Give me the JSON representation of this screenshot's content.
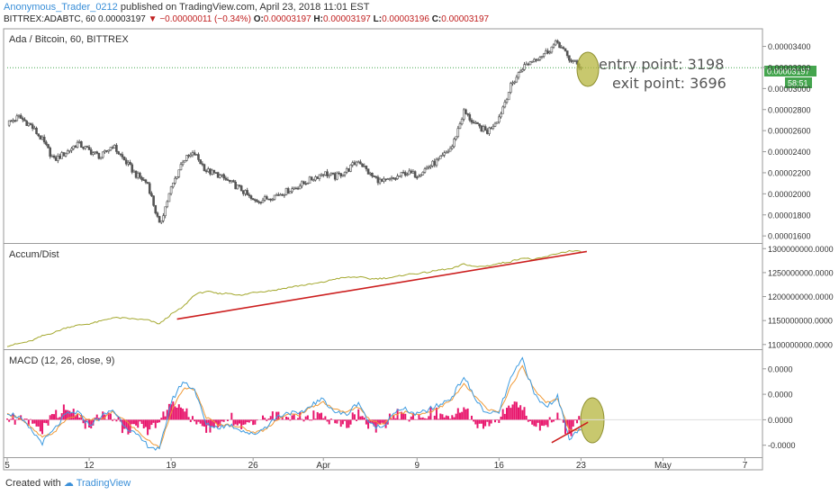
{
  "header": {
    "user": "Anonymous_Trader_0212",
    "published": "published on TradingView.com, April 23, 2018 11:01 EST",
    "symbol": "BITTREX:ADABTC, 60",
    "last": "0.00003197",
    "change": "−0.00000011 (−0.34%)",
    "o_label": "O:",
    "o_value": "0.00003197",
    "h_label": "H:",
    "h_value": "0.00003197",
    "l_label": "L:",
    "l_value": "0.00003196",
    "c_label": "C:",
    "c_value": "0.00003197"
  },
  "annotations": {
    "entry": "entry point: 3198",
    "exit": "exit point: 3696"
  },
  "price_badge": {
    "value": "0.00003197",
    "countdown": "58:51"
  },
  "footer": {
    "created_with": "Created with",
    "brand": "TradingView"
  },
  "colors": {
    "price": "#555555",
    "accum": "#a4a82e",
    "trend": "#cc1f1f",
    "macd": "#3d9be0",
    "signal": "#f09a37",
    "hist": "#e8176d",
    "highlight": "#b5b63d",
    "badge": "#44a54e"
  },
  "chart_data": [
    {
      "type": "line",
      "title": "Ada / Bitcoin, 60, BITTREX",
      "ylim": [
        1.55e-05,
        3.55e-05
      ],
      "ytick_labels": [
        "0.00003400",
        "0.00003200",
        "0.00003000",
        "0.00002800",
        "0.00002600",
        "0.00002400",
        "0.00002200",
        "0.00002000",
        "0.00001800",
        "0.00001600"
      ],
      "yticks": [
        3.4e-05,
        3.2e-05,
        3e-05,
        2.8e-05,
        2.6e-05,
        2.4e-05,
        2.2e-05,
        2e-05,
        1.8e-05,
        1.6e-05
      ],
      "x_labels": [
        "5",
        "12",
        "19",
        "26",
        "Apr",
        "9",
        "16",
        "23",
        "May",
        "7"
      ],
      "x_label_days": [
        0,
        7,
        14,
        21,
        27,
        35,
        42,
        49,
        56,
        63
      ],
      "xlim": [
        0,
        64.5
      ],
      "series": [
        {
          "x": [
            0,
            1,
            2,
            3,
            4,
            5,
            6,
            7,
            8,
            9,
            10,
            11,
            12,
            13,
            14,
            15,
            16,
            17,
            18,
            19,
            20,
            21,
            22,
            23,
            24,
            25,
            26,
            27,
            28,
            29,
            30,
            31,
            32,
            33,
            34,
            35,
            36,
            37,
            38,
            39,
            40,
            41,
            42,
            43,
            44,
            45,
            46,
            47,
            48,
            49
          ],
          "values": [
            2.67e-05,
            2.73e-05,
            2.65e-05,
            2.51e-05,
            2.32e-05,
            2.39e-05,
            2.48e-05,
            2.41e-05,
            2.35e-05,
            2.46e-05,
            2.32e-05,
            2.18e-05,
            2.1e-05,
            1.7e-05,
            2.05e-05,
            2.32e-05,
            2.38e-05,
            2.22e-05,
            2.18e-05,
            2.11e-05,
            2.04e-05,
            1.93e-05,
            1.95e-05,
            1.99e-05,
            2.03e-05,
            2.08e-05,
            2.14e-05,
            2.2e-05,
            2.16e-05,
            2.22e-05,
            2.32e-05,
            2.18e-05,
            2.11e-05,
            2.14e-05,
            2.2e-05,
            2.18e-05,
            2.26e-05,
            2.33e-05,
            2.45e-05,
            2.78e-05,
            2.65e-05,
            2.59e-05,
            2.73e-05,
            3.02e-05,
            3.2e-05,
            3.28e-05,
            3.34e-05,
            3.44e-05,
            3.28e-05,
            3.2e-05
          ]
        }
      ]
    },
    {
      "type": "line",
      "title": "Accum/Dist",
      "ylim": [
        1094000000,
        1308000000
      ],
      "ytick_labels": [
        "1300000000.0000",
        "1250000000.0000",
        "1200000000.0000",
        "1150000000.0000",
        "1100000000.0000"
      ],
      "yticks": [
        1300000000,
        1250000000,
        1200000000,
        1150000000,
        1100000000
      ],
      "series": [
        {
          "x": [
            0,
            1,
            2,
            3,
            4,
            5,
            6,
            7,
            8,
            9,
            10,
            11,
            12,
            13,
            14,
            15,
            16,
            17,
            18,
            19,
            20,
            21,
            22,
            23,
            24,
            25,
            26,
            27,
            28,
            29,
            30,
            31,
            32,
            33,
            34,
            35,
            36,
            37,
            38,
            39,
            40,
            41,
            42,
            43,
            44,
            45,
            46,
            47,
            48,
            49
          ],
          "values": [
            1097000000,
            1102000000,
            1107000000,
            1118000000,
            1125000000,
            1135000000,
            1140000000,
            1143000000,
            1149000000,
            1156000000,
            1155000000,
            1153000000,
            1151000000,
            1143000000,
            1163000000,
            1178000000,
            1204000000,
            1211000000,
            1206000000,
            1207000000,
            1202000000,
            1209000000,
            1211000000,
            1214000000,
            1219000000,
            1223000000,
            1226000000,
            1230000000,
            1237000000,
            1240000000,
            1241000000,
            1237000000,
            1238000000,
            1240000000,
            1246000000,
            1248000000,
            1251000000,
            1256000000,
            1258000000,
            1268000000,
            1262000000,
            1264000000,
            1269000000,
            1273000000,
            1281000000,
            1277000000,
            1283000000,
            1290000000,
            1295000000,
            1294000000
          ]
        }
      ],
      "trendline": {
        "x": [
          14.5,
          49.5
        ],
        "values": [
          1153000000,
          1294000000
        ]
      }
    },
    {
      "type": "line",
      "title": "MACD (12, 26, close, 9)",
      "ylim": [
        -1.4e-06,
        2.7e-06
      ],
      "ytick_labels": [
        "0.0000",
        "0.0000",
        "0.0000",
        "-0.0000"
      ],
      "yticks": [
        2e-06,
        1e-06,
        0.0,
        -1e-06
      ],
      "series": [
        {
          "name": "MACD",
          "x": [
            0,
            1,
            2,
            3,
            4,
            5,
            6,
            7,
            8,
            9,
            10,
            11,
            12,
            13,
            14,
            15,
            16,
            17,
            18,
            19,
            20,
            21,
            22,
            23,
            24,
            25,
            26,
            27,
            28,
            29,
            30,
            31,
            32,
            33,
            34,
            35,
            36,
            37,
            38,
            39,
            40,
            41,
            42,
            43,
            44,
            45,
            46,
            47,
            48,
            49
          ],
          "values": [
            3e-07,
            1e-07,
            -4e-07,
            -9e-07,
            -4e-07,
            2e-07,
            3e-07,
            -2e-07,
            1e-07,
            4e-07,
            -2e-07,
            -6e-07,
            -1e-06,
            -1.2e-06,
            7e-07,
            1.5e-06,
            1.2e-06,
            -2e-07,
            -3e-07,
            -2e-07,
            -4e-07,
            -6e-07,
            -3e-07,
            1e-07,
            3e-07,
            2e-07,
            6e-07,
            8e-07,
            3e-07,
            2e-07,
            7e-07,
            -2e-07,
            -3e-07,
            3e-07,
            4e-07,
            2e-07,
            4e-07,
            6e-07,
            9e-07,
            1.7e-06,
            8e-07,
            2e-07,
            3e-07,
            1.6e-06,
            2.4e-06,
            1e-06,
            5e-07,
            9e-07,
            -7e-07,
            -4e-07
          ]
        },
        {
          "name": "Signal",
          "x": [
            0,
            1,
            2,
            3,
            4,
            5,
            6,
            7,
            8,
            9,
            10,
            11,
            12,
            13,
            14,
            15,
            16,
            17,
            18,
            19,
            20,
            21,
            22,
            23,
            24,
            25,
            26,
            27,
            28,
            29,
            30,
            31,
            32,
            33,
            34,
            35,
            36,
            37,
            38,
            39,
            40,
            41,
            42,
            43,
            44,
            45,
            46,
            47,
            48,
            49
          ],
          "values": [
            2e-07,
            1e-07,
            -3e-07,
            -7e-07,
            -5e-07,
            0.0,
            2e-07,
            0.0,
            0.0,
            3e-07,
            0.0,
            -4e-07,
            -8e-07,
            -1.1e-06,
            3e-07,
            1.2e-06,
            1.2e-06,
            1e-07,
            -2e-07,
            -2e-07,
            -3e-07,
            -5e-07,
            -4e-07,
            0.0,
            2e-07,
            2e-07,
            5e-07,
            7e-07,
            4e-07,
            3e-07,
            5e-07,
            0.0,
            -2e-07,
            2e-07,
            3e-07,
            2e-07,
            3e-07,
            5e-07,
            8e-07,
            1.4e-06,
            9e-07,
            4e-07,
            3e-07,
            1.3e-06,
            2.1e-06,
            1.2e-06,
            7e-07,
            8e-07,
            -4e-07,
            -4e-07
          ]
        }
      ],
      "trendline": {
        "x": [
          46.5,
          49.6
        ],
        "values": [
          -9e-07,
          -1e-07
        ]
      }
    }
  ]
}
